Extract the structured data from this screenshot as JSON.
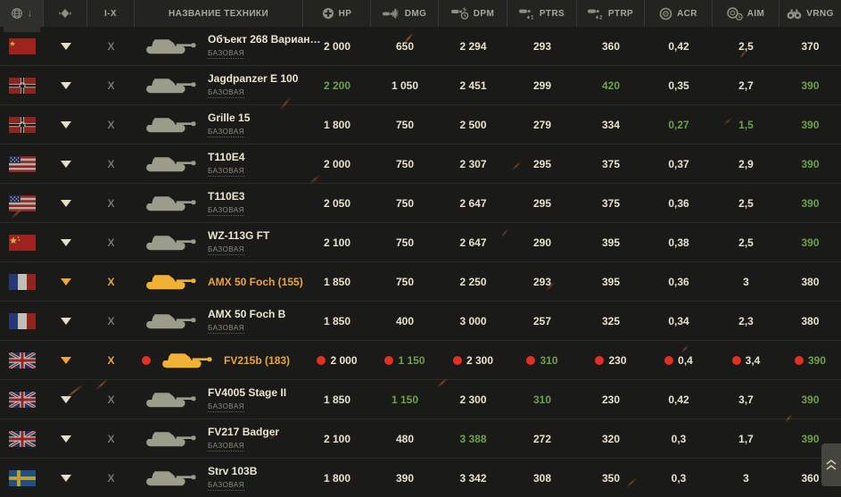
{
  "header": {
    "columns": [
      {
        "id": "nation",
        "label": "",
        "icon": "globe-icon",
        "sort": "arrow-down-icon",
        "active": true
      },
      {
        "id": "class",
        "label": "",
        "icon": "tank-class-icon"
      },
      {
        "id": "tier",
        "label": "I-X"
      },
      {
        "id": "name",
        "label": "НАЗВАНИЕ ТЕХНИКИ"
      },
      {
        "id": "hp",
        "label": "HP",
        "icon": "hp-icon"
      },
      {
        "id": "dmg",
        "label": "DMG",
        "icon": "shell-hit-icon"
      },
      {
        "id": "dpm",
        "label": "DPM",
        "icon": "shell-clock-icon"
      },
      {
        "id": "ptrs",
        "label": "PTRS",
        "icon": "shell-1-icon"
      },
      {
        "id": "ptrp",
        "label": "PTRP",
        "icon": "shell-2-icon"
      },
      {
        "id": "acr",
        "label": "ACR",
        "icon": "target-icon"
      },
      {
        "id": "aim",
        "label": "AIM",
        "icon": "target-clock-icon"
      },
      {
        "id": "vrng",
        "label": "VRNG",
        "icon": "binoculars-icon"
      }
    ]
  },
  "rows": [
    {
      "nation": "ussr",
      "name": "Объект 268 Вариан…",
      "variant": "БАЗОВАЯ",
      "selected": false,
      "alert": false,
      "stats": [
        {
          "v": "2 000"
        },
        {
          "v": "650"
        },
        {
          "v": "2 294"
        },
        {
          "v": "293"
        },
        {
          "v": "360"
        },
        {
          "v": "0,42"
        },
        {
          "v": "2,5"
        },
        {
          "v": "370"
        }
      ]
    },
    {
      "nation": "germany",
      "name": "Jagdpanzer E 100",
      "variant": "БАЗОВАЯ",
      "selected": false,
      "alert": false,
      "stats": [
        {
          "v": "2 200",
          "green": true
        },
        {
          "v": "1 050"
        },
        {
          "v": "2 451"
        },
        {
          "v": "299"
        },
        {
          "v": "420",
          "green": true
        },
        {
          "v": "0,35"
        },
        {
          "v": "2,7"
        },
        {
          "v": "390",
          "green": true
        }
      ]
    },
    {
      "nation": "germany",
      "name": "Grille 15",
      "variant": "БАЗОВАЯ",
      "selected": false,
      "alert": false,
      "stats": [
        {
          "v": "1 800"
        },
        {
          "v": "750"
        },
        {
          "v": "2 500"
        },
        {
          "v": "279"
        },
        {
          "v": "334"
        },
        {
          "v": "0,27",
          "green": true
        },
        {
          "v": "1,5",
          "green": true
        },
        {
          "v": "390",
          "green": true
        }
      ]
    },
    {
      "nation": "usa",
      "name": "T110E4",
      "variant": "БАЗОВАЯ",
      "selected": false,
      "alert": false,
      "stats": [
        {
          "v": "2 000"
        },
        {
          "v": "750"
        },
        {
          "v": "2 307"
        },
        {
          "v": "295"
        },
        {
          "v": "375"
        },
        {
          "v": "0,37"
        },
        {
          "v": "2,9"
        },
        {
          "v": "390",
          "green": true
        }
      ]
    },
    {
      "nation": "usa",
      "name": "T110E3",
      "variant": "БАЗОВАЯ",
      "selected": false,
      "alert": false,
      "stats": [
        {
          "v": "2 050"
        },
        {
          "v": "750"
        },
        {
          "v": "2 647"
        },
        {
          "v": "295"
        },
        {
          "v": "375"
        },
        {
          "v": "0,36"
        },
        {
          "v": "2,5"
        },
        {
          "v": "390",
          "green": true
        }
      ]
    },
    {
      "nation": "china",
      "name": "WZ-113G FT",
      "variant": "БАЗОВАЯ",
      "selected": false,
      "alert": false,
      "stats": [
        {
          "v": "2 100"
        },
        {
          "v": "750"
        },
        {
          "v": "2 647"
        },
        {
          "v": "290"
        },
        {
          "v": "395"
        },
        {
          "v": "0,38"
        },
        {
          "v": "2,5"
        },
        {
          "v": "390",
          "green": true
        }
      ]
    },
    {
      "nation": "france",
      "name": "AMX 50 Foch (155)",
      "variant": "",
      "selected": true,
      "alert": false,
      "stats": [
        {
          "v": "1 850"
        },
        {
          "v": "750"
        },
        {
          "v": "2 250"
        },
        {
          "v": "293"
        },
        {
          "v": "395"
        },
        {
          "v": "0,36"
        },
        {
          "v": "3"
        },
        {
          "v": "380"
        }
      ]
    },
    {
      "nation": "france",
      "name": "AMX 50 Foch B",
      "variant": "БАЗОВАЯ",
      "selected": false,
      "alert": false,
      "stats": [
        {
          "v": "1 850"
        },
        {
          "v": "400"
        },
        {
          "v": "3 000"
        },
        {
          "v": "257"
        },
        {
          "v": "325"
        },
        {
          "v": "0,34"
        },
        {
          "v": "2,3"
        },
        {
          "v": "380"
        }
      ]
    },
    {
      "nation": "uk",
      "name": "FV215b (183)",
      "variant": "",
      "selected": true,
      "alert": true,
      "stats": [
        {
          "v": "2 000"
        },
        {
          "v": "1 150",
          "green": true
        },
        {
          "v": "2 300"
        },
        {
          "v": "310",
          "green": true
        },
        {
          "v": "230"
        },
        {
          "v": "0,4"
        },
        {
          "v": "3,4"
        },
        {
          "v": "390",
          "green": true
        }
      ]
    },
    {
      "nation": "uk",
      "name": "FV4005 Stage II",
      "variant": "БАЗОВАЯ",
      "selected": false,
      "alert": false,
      "stats": [
        {
          "v": "1 850"
        },
        {
          "v": "1 150",
          "green": true
        },
        {
          "v": "2 300"
        },
        {
          "v": "310",
          "green": true
        },
        {
          "v": "230"
        },
        {
          "v": "0,42"
        },
        {
          "v": "3,7"
        },
        {
          "v": "390",
          "green": true
        }
      ]
    },
    {
      "nation": "uk",
      "name": "FV217 Badger",
      "variant": "БАЗОВАЯ",
      "selected": false,
      "alert": false,
      "stats": [
        {
          "v": "2 100"
        },
        {
          "v": "480"
        },
        {
          "v": "3 388",
          "green": true
        },
        {
          "v": "272"
        },
        {
          "v": "320"
        },
        {
          "v": "0,3"
        },
        {
          "v": "1,7"
        },
        {
          "v": "390",
          "green": true
        }
      ]
    },
    {
      "nation": "sweden",
      "name": "Strv 103B",
      "variant": "БАЗОВАЯ",
      "selected": false,
      "alert": false,
      "stats": [
        {
          "v": "1 800"
        },
        {
          "v": "390"
        },
        {
          "v": "3 342"
        },
        {
          "v": "308"
        },
        {
          "v": "350"
        },
        {
          "v": "0,3"
        },
        {
          "v": "3"
        },
        {
          "v": "360"
        }
      ]
    }
  ],
  "colors": {
    "accent_orange": "#eda43c",
    "positive_green": "#6ea24b",
    "alert_red": "#e5301f",
    "value_cream": "#e9e2cc",
    "header_bg": "#232320",
    "row_bg": "#1a1a18"
  }
}
